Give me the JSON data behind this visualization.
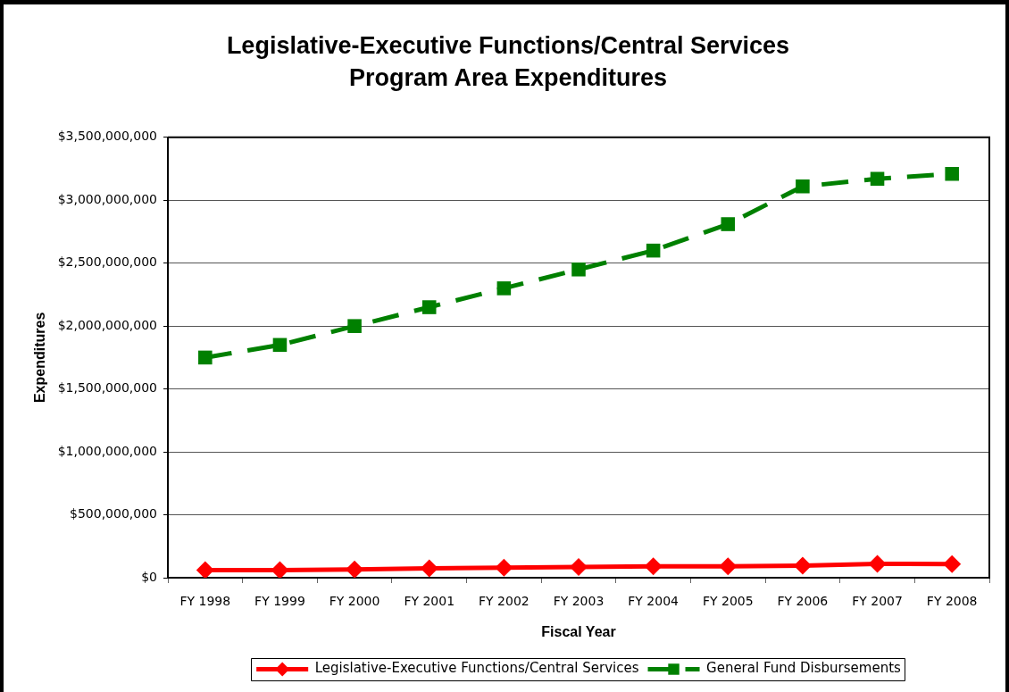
{
  "chart_data": {
    "type": "line",
    "title": "Legislative-Executive Functions/Central Services\nProgram Area Expenditures",
    "xlabel": "Fiscal Year",
    "ylabel": "Expenditures",
    "categories": [
      "FY 1998",
      "FY 1999",
      "FY 2000",
      "FY 2001",
      "FY 2002",
      "FY 2003",
      "FY 2004",
      "FY 2005",
      "FY 2006",
      "FY 2007",
      "FY 2008"
    ],
    "series": [
      {
        "name": "Legislative-Executive Functions/Central Services",
        "color": "#ff0000",
        "marker": "diamond",
        "line_style": "solid",
        "values": [
          60000000,
          60000000,
          65000000,
          75000000,
          80000000,
          85000000,
          90000000,
          90000000,
          95000000,
          110000000,
          108000000
        ]
      },
      {
        "name": "General Fund Disbursements",
        "color": "#008000",
        "marker": "square",
        "line_style": "dashed",
        "values": [
          1750000000,
          1850000000,
          2000000000,
          2150000000,
          2300000000,
          2450000000,
          2600000000,
          2810000000,
          3110000000,
          3170000000,
          3210000000
        ]
      }
    ],
    "ylim": [
      0,
      3500000000
    ],
    "yticks": [
      {
        "value": 0,
        "label": "$0"
      },
      {
        "value": 500000000,
        "label": "$500,000,000"
      },
      {
        "value": 1000000000,
        "label": "$1,000,000,000"
      },
      {
        "value": 1500000000,
        "label": "$1,500,000,000"
      },
      {
        "value": 2000000000,
        "label": "$2,000,000,000"
      },
      {
        "value": 2500000000,
        "label": "$2,500,000,000"
      },
      {
        "value": 3000000000,
        "label": "$3,000,000,000"
      },
      {
        "value": 3500000000,
        "label": "$3,500,000,000"
      }
    ],
    "grid": "y",
    "legend": "bottom"
  }
}
